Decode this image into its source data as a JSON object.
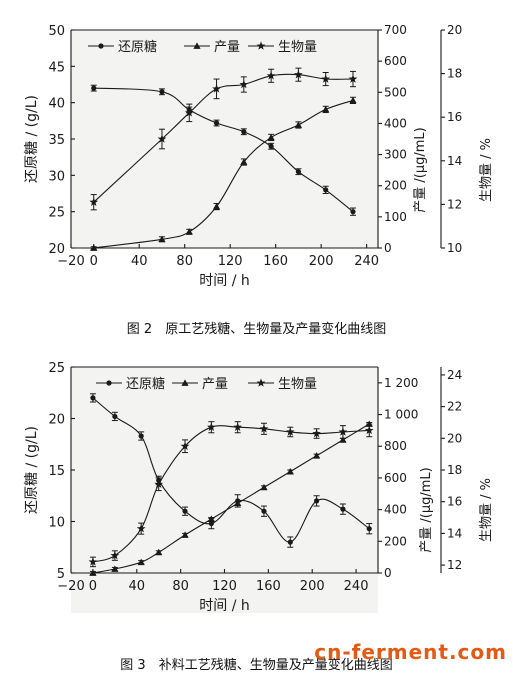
{
  "figure2": {
    "caption": "图 2　原工艺残糖、生物量及产量变化曲线图",
    "xlabel": "时间 / h",
    "ylabel_left": "还原糖 / (g/L)",
    "ylabel_right1": "产量 /(μg/mL)",
    "ylabel_right2": "生物量 / %",
    "legend": [
      "还原糖",
      "产量",
      "生物量"
    ],
    "xticks": [
      "−20",
      "0",
      "40",
      "80",
      "120",
      "160",
      "200",
      "240"
    ],
    "yticks_left": [
      "20",
      "25",
      "30",
      "35",
      "40",
      "45",
      "50"
    ],
    "yticks_right1": [
      "0",
      "100",
      "200",
      "300",
      "400",
      "500",
      "600",
      "700"
    ],
    "yticks_right2": [
      "10",
      "12",
      "14",
      "16",
      "18",
      "20"
    ]
  },
  "figure3": {
    "caption": "图 3　补料工艺残糖、生物量及产量变化曲线图",
    "xlabel": "时间 / h",
    "ylabel_left": "还原糖 / (g/L)",
    "ylabel_right1": "产量 /(μg/mL)",
    "ylabel_right2": "生物量 / %",
    "legend": [
      "还原糖",
      "产量",
      "生物量"
    ],
    "xticks": [
      "−20",
      "0",
      "40",
      "80",
      "120",
      "160",
      "200",
      "240"
    ],
    "yticks_left": [
      "5",
      "10",
      "15",
      "20",
      "25"
    ],
    "yticks_right1": [
      "0",
      "200",
      "400",
      "600",
      "800",
      "1 000",
      "1 200"
    ],
    "yticks_right2": [
      "12",
      "14",
      "16",
      "18",
      "20",
      "22",
      "24"
    ]
  },
  "watermark": "cn-ferment.com",
  "colors": {
    "line": "#1a1a1a",
    "plot_bg": "#f3f3f1",
    "watermark": "#e35a14"
  },
  "chart_data": [
    {
      "type": "line",
      "x": [
        0,
        60,
        84,
        108,
        132,
        156,
        180,
        204,
        228
      ],
      "xlim": [
        -20,
        250
      ],
      "series": [
        {
          "name": "还原糖",
          "axis": "left",
          "marker": "dot",
          "values": [
            42.0,
            41.5,
            39.0,
            37.2,
            36.0,
            34.0,
            30.5,
            28.0,
            25.0
          ],
          "errors": [
            0.4,
            0.4,
            0.4,
            0.4,
            0.4,
            0.4,
            0.4,
            0.5,
            0.5
          ]
        },
        {
          "name": "产量",
          "axis": "right1",
          "marker": "triangle",
          "values": [
            0,
            28,
            52,
            133,
            276,
            355,
            395,
            445,
            474
          ],
          "errors": [
            4,
            8,
            8,
            10,
            10,
            10,
            10,
            10,
            10
          ]
        },
        {
          "name": "生物量",
          "axis": "right2",
          "marker": "star",
          "values": [
            12.1,
            15.0,
            16.2,
            17.3,
            17.5,
            17.9,
            17.95,
            17.75,
            17.75
          ],
          "errors": [
            0.35,
            0.45,
            0.4,
            0.45,
            0.35,
            0.3,
            0.3,
            0.3,
            0.35
          ]
        }
      ],
      "ylim_left": [
        20,
        50
      ],
      "ylim_right1": [
        0,
        700
      ],
      "ylim_right2": [
        10,
        20
      ]
    },
    {
      "type": "line",
      "x": [
        0,
        20,
        44,
        60,
        84,
        108,
        132,
        156,
        180,
        204,
        228,
        252
      ],
      "xlim": [
        -20,
        260
      ],
      "series": [
        {
          "name": "还原糖",
          "axis": "left",
          "marker": "dot",
          "values": [
            22.0,
            20.2,
            18.3,
            14.0,
            11.0,
            9.8,
            12.0,
            11.0,
            8.0,
            12.0,
            11.2,
            9.3
          ],
          "errors": [
            0.4,
            0.4,
            0.4,
            0.4,
            0.4,
            0.5,
            0.6,
            0.5,
            0.5,
            0.5,
            0.5,
            0.5
          ]
        },
        {
          "name": "产量",
          "axis": "right1",
          "marker": "triangle",
          "values": [
            0,
            25,
            68,
            130,
            240,
            340,
            440,
            540,
            640,
            740,
            840,
            940
          ],
          "errors": [
            10,
            10,
            10,
            10,
            10,
            10,
            10,
            10,
            10,
            10,
            10,
            10
          ]
        },
        {
          "name": "生物量",
          "axis": "right2",
          "marker": "star",
          "values": [
            12.2,
            12.6,
            14.3,
            17.1,
            19.5,
            20.7,
            20.7,
            20.6,
            20.4,
            20.3,
            20.4,
            20.5
          ],
          "errors": [
            0.3,
            0.3,
            0.35,
            0.4,
            0.4,
            0.35,
            0.35,
            0.35,
            0.3,
            0.3,
            0.4,
            0.4
          ]
        }
      ],
      "ylim_left": [
        5,
        25
      ],
      "ylim_right1": [
        0,
        1300
      ],
      "ylim_right2": [
        11.5,
        24.5
      ]
    }
  ]
}
